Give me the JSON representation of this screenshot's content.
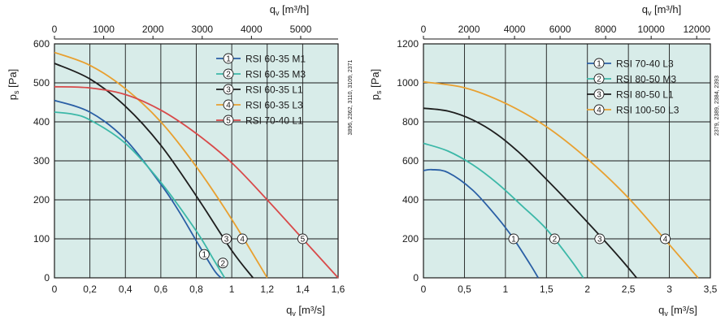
{
  "chart_data": [
    {
      "type": "line",
      "title": "",
      "xlabel": "q_v [m³/s]",
      "x2label": "q_v [m³/h]",
      "ylabel": "p_s [Pa]",
      "xlim": [
        0,
        1.6
      ],
      "ylim": [
        0,
        600
      ],
      "x2lim": [
        0,
        5760
      ],
      "x_ticks": [
        0,
        0.2,
        0.4,
        0.6,
        0.8,
        1.0,
        1.2,
        1.4,
        1.6
      ],
      "x_tick_labels": [
        "0",
        "0,2",
        "0,4",
        "0,6",
        "0,8",
        "1",
        "1,2",
        "1,4",
        "1,6"
      ],
      "x2_ticks": [
        0,
        1000,
        2000,
        3000,
        4000,
        5000
      ],
      "x2_tick_labels": [
        "0",
        "1000",
        "2000",
        "3000",
        "4000",
        "5000"
      ],
      "y_ticks": [
        0,
        100,
        200,
        300,
        400,
        500,
        600
      ],
      "y_tick_labels": [
        "0",
        "100",
        "200",
        "300",
        "400",
        "500",
        "600"
      ],
      "grid": true,
      "legend_position": "top-right",
      "side_note": "3896, 2362, 3110, 3109, 2371",
      "series": [
        {
          "marker": "1",
          "name": "RSI 60-35 M1",
          "color": "#2a5fa5",
          "x": [
            0,
            0.2,
            0.4,
            0.6,
            0.7,
            0.8,
            0.9,
            0.94
          ],
          "y": [
            455,
            425,
            355,
            240,
            172,
            95,
            20,
            0
          ],
          "marker_point": [
            0.845,
            60
          ]
        },
        {
          "marker": "2",
          "name": "RSI 60-35 M3",
          "color": "#3cb8a8",
          "x": [
            0,
            0.1,
            0.2,
            0.4,
            0.6,
            0.8,
            0.9,
            0.96
          ],
          "y": [
            425,
            420,
            405,
            345,
            245,
            120,
            45,
            0
          ],
          "marker_point": [
            0.95,
            38
          ]
        },
        {
          "marker": "3",
          "name": "RSI 60-35 L1",
          "color": "#1e1e1e",
          "x": [
            0,
            0.2,
            0.4,
            0.6,
            0.8,
            1.0,
            1.12
          ],
          "y": [
            550,
            510,
            440,
            340,
            210,
            70,
            0
          ],
          "marker_point": [
            0.97,
            100
          ]
        },
        {
          "marker": "4",
          "name": "RSI 60-35 L3",
          "color": "#e8a030",
          "x": [
            0,
            0.2,
            0.4,
            0.6,
            0.8,
            1.0,
            1.2
          ],
          "y": [
            578,
            545,
            485,
            400,
            285,
            150,
            0
          ],
          "marker_point": [
            1.06,
            100
          ]
        },
        {
          "marker": "5",
          "name": "RSI 70-40 L1",
          "color": "#d84a4a",
          "x": [
            0,
            0.2,
            0.4,
            0.6,
            0.8,
            1.0,
            1.2,
            1.4,
            1.6
          ],
          "y": [
            490,
            487,
            470,
            430,
            370,
            295,
            200,
            100,
            0
          ],
          "marker_point": [
            1.4,
            100
          ]
        }
      ]
    },
    {
      "type": "line",
      "title": "",
      "xlabel": "q_v [m³/s]",
      "x2label": "q_v [m³/h]",
      "ylabel": "p_s [Pa]",
      "xlim": [
        0,
        3.5
      ],
      "ylim": [
        0,
        1200
      ],
      "x2lim": [
        0,
        12600
      ],
      "x_ticks": [
        0,
        0.5,
        1.0,
        1.5,
        2.0,
        2.5,
        3.0,
        3.5
      ],
      "x_tick_labels": [
        "0",
        "0,5",
        "1",
        "1,5",
        "2",
        "2,5",
        "3",
        "3,5"
      ],
      "x2_ticks": [
        0,
        2000,
        4000,
        6000,
        8000,
        10000,
        12000
      ],
      "x2_tick_labels": [
        "0",
        "2000",
        "4000",
        "6000",
        "8000",
        "10000",
        "12000"
      ],
      "y_ticks": [
        0,
        200,
        400,
        600,
        800,
        1000,
        1200
      ],
      "y_tick_labels": [
        "0",
        "200",
        "400",
        "600",
        "800",
        "1000",
        "1200"
      ],
      "grid": true,
      "legend_position": "top-right",
      "side_note": "2379, 2389, 2384, 2393",
      "series": [
        {
          "marker": "1",
          "name": "RSI 70-40 L3",
          "color": "#2a5fa5",
          "x": [
            0,
            0.1,
            0.3,
            0.6,
            0.9,
            1.1,
            1.3,
            1.4
          ],
          "y": [
            550,
            555,
            540,
            450,
            310,
            200,
            70,
            0
          ],
          "marker_point": [
            1.1,
            200
          ]
        },
        {
          "marker": "2",
          "name": "RSI 80-50 M3",
          "color": "#3cb8a8",
          "x": [
            0,
            0.3,
            0.6,
            0.9,
            1.2,
            1.5,
            1.8,
            1.95
          ],
          "y": [
            690,
            650,
            580,
            485,
            370,
            250,
            90,
            0
          ],
          "marker_point": [
            1.6,
            200
          ]
        },
        {
          "marker": "3",
          "name": "RSI 80-50 L1",
          "color": "#1e1e1e",
          "x": [
            0,
            0.3,
            0.6,
            0.9,
            1.2,
            1.5,
            1.8,
            2.1,
            2.4,
            2.6
          ],
          "y": [
            870,
            855,
            810,
            735,
            630,
            505,
            375,
            240,
            100,
            0
          ],
          "marker_point": [
            2.15,
            200
          ]
        },
        {
          "marker": "4",
          "name": "RSI 100-50 L3",
          "color": "#e8a030",
          "x": [
            0,
            0.5,
            1.0,
            1.5,
            2.0,
            2.5,
            3.0,
            3.35
          ],
          "y": [
            1005,
            975,
            895,
            775,
            610,
            410,
            170,
            0
          ],
          "marker_point": [
            2.95,
            200
          ]
        }
      ]
    }
  ]
}
